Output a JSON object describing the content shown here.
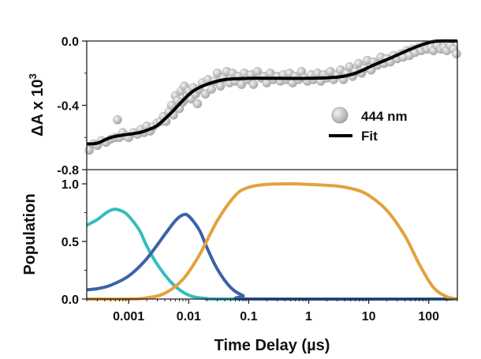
{
  "chart_data": [
    {
      "type": "scatter",
      "panel": "top",
      "ylabel": "ΔA x 10",
      "ylabel_superscript": "3",
      "ylim": [
        -0.8,
        0.0
      ],
      "yticks": [
        "0.0",
        "-0.4",
        "-0.8"
      ],
      "ytick_values": [
        0.0,
        -0.4,
        -0.8
      ],
      "xscale": "log",
      "xlim_us": [
        0.0002,
        300
      ],
      "legend_position": "right",
      "series": [
        {
          "name": "444 nm",
          "kind": "markers",
          "color": "#b8b8b8",
          "points": [
            [
              0.00022,
              -0.68
            ],
            [
              0.00026,
              -0.64
            ],
            [
              0.0003,
              -0.65
            ],
            [
              0.00035,
              -0.62
            ],
            [
              0.00042,
              -0.63
            ],
            [
              0.0005,
              -0.61
            ],
            [
              0.0006,
              -0.6
            ],
            [
              0.00065,
              -0.49
            ],
            [
              0.0007,
              -0.6
            ],
            [
              0.0008,
              -0.57
            ],
            [
              0.0009,
              -0.59
            ],
            [
              0.001,
              -0.6
            ],
            [
              0.0012,
              -0.57
            ],
            [
              0.0014,
              -0.58
            ],
            [
              0.0016,
              -0.55
            ],
            [
              0.0018,
              -0.57
            ],
            [
              0.002,
              -0.53
            ],
            [
              0.0023,
              -0.56
            ],
            [
              0.0026,
              -0.53
            ],
            [
              0.003,
              -0.51
            ],
            [
              0.0034,
              -0.5
            ],
            [
              0.0038,
              -0.47
            ],
            [
              0.0042,
              -0.5
            ],
            [
              0.0047,
              -0.44
            ],
            [
              0.0052,
              -0.4
            ],
            [
              0.0056,
              -0.46
            ],
            [
              0.006,
              -0.34
            ],
            [
              0.0065,
              -0.37
            ],
            [
              0.007,
              -0.42
            ],
            [
              0.0075,
              -0.31
            ],
            [
              0.008,
              -0.38
            ],
            [
              0.0085,
              -0.28
            ],
            [
              0.009,
              -0.36
            ],
            [
              0.0095,
              -0.34
            ],
            [
              0.01,
              -0.31
            ],
            [
              0.011,
              -0.36
            ],
            [
              0.012,
              -0.29
            ],
            [
              0.013,
              -0.33
            ],
            [
              0.014,
              -0.39
            ],
            [
              0.015,
              -0.3
            ],
            [
              0.017,
              -0.26
            ],
            [
              0.019,
              -0.33
            ],
            [
              0.021,
              -0.24
            ],
            [
              0.024,
              -0.3
            ],
            [
              0.027,
              -0.25
            ],
            [
              0.03,
              -0.2
            ],
            [
              0.034,
              -0.28
            ],
            [
              0.038,
              -0.23
            ],
            [
              0.043,
              -0.19
            ],
            [
              0.048,
              -0.26
            ],
            [
              0.054,
              -0.2
            ],
            [
              0.06,
              -0.25
            ],
            [
              0.068,
              -0.22
            ],
            [
              0.076,
              -0.27
            ],
            [
              0.085,
              -0.2
            ],
            [
              0.095,
              -0.24
            ],
            [
              0.11,
              -0.21
            ],
            [
              0.12,
              -0.27
            ],
            [
              0.14,
              -0.19
            ],
            [
              0.16,
              -0.23
            ],
            [
              0.18,
              -0.22
            ],
            [
              0.2,
              -0.26
            ],
            [
              0.23,
              -0.2
            ],
            [
              0.26,
              -0.24
            ],
            [
              0.3,
              -0.22
            ],
            [
              0.34,
              -0.25
            ],
            [
              0.38,
              -0.21
            ],
            [
              0.43,
              -0.24
            ],
            [
              0.48,
              -0.2
            ],
            [
              0.54,
              -0.26
            ],
            [
              0.6,
              -0.22
            ],
            [
              0.68,
              -0.24
            ],
            [
              0.76,
              -0.19
            ],
            [
              0.85,
              -0.23
            ],
            [
              0.95,
              -0.25
            ],
            [
              1.1,
              -0.21
            ],
            [
              1.2,
              -0.24
            ],
            [
              1.4,
              -0.2
            ],
            [
              1.6,
              -0.25
            ],
            [
              1.8,
              -0.21
            ],
            [
              2.0,
              -0.23
            ],
            [
              2.3,
              -0.19
            ],
            [
              2.6,
              -0.24
            ],
            [
              3.0,
              -0.21
            ],
            [
              3.4,
              -0.18
            ],
            [
              3.8,
              -0.24
            ],
            [
              4.3,
              -0.2
            ],
            [
              4.8,
              -0.16
            ],
            [
              5.4,
              -0.22
            ],
            [
              6.0,
              -0.19
            ],
            [
              6.8,
              -0.14
            ],
            [
              7.6,
              -0.2
            ],
            [
              8.5,
              -0.17
            ],
            [
              9.5,
              -0.12
            ],
            [
              11,
              -0.18
            ],
            [
              12,
              -0.13
            ],
            [
              14,
              -0.15
            ],
            [
              16,
              -0.1
            ],
            [
              18,
              -0.14
            ],
            [
              20,
              -0.11
            ],
            [
              23,
              -0.13
            ],
            [
              26,
              -0.09
            ],
            [
              30,
              -0.11
            ],
            [
              34,
              -0.08
            ],
            [
              38,
              -0.1
            ],
            [
              43,
              -0.06
            ],
            [
              48,
              -0.09
            ],
            [
              54,
              -0.05
            ],
            [
              60,
              -0.07
            ],
            [
              68,
              -0.04
            ],
            [
              76,
              -0.06
            ],
            [
              85,
              -0.03
            ],
            [
              95,
              -0.05
            ],
            [
              110,
              -0.04
            ],
            [
              120,
              -0.06
            ],
            [
              140,
              -0.03
            ],
            [
              160,
              -0.05
            ],
            [
              180,
              -0.04
            ],
            [
              200,
              -0.06
            ],
            [
              230,
              -0.03
            ],
            [
              260,
              -0.05
            ],
            [
              290,
              -0.08
            ]
          ]
        },
        {
          "name": "Fit",
          "kind": "line",
          "color": "#000000",
          "points": [
            [
              0.0002,
              -0.64
            ],
            [
              0.0003,
              -0.635
            ],
            [
              0.0005,
              -0.6
            ],
            [
              0.0008,
              -0.585
            ],
            [
              0.001,
              -0.58
            ],
            [
              0.0015,
              -0.57
            ],
            [
              0.002,
              -0.555
            ],
            [
              0.003,
              -0.525
            ],
            [
              0.005,
              -0.45
            ],
            [
              0.008,
              -0.37
            ],
            [
              0.012,
              -0.31
            ],
            [
              0.02,
              -0.27
            ],
            [
              0.04,
              -0.24
            ],
            [
              0.1,
              -0.232
            ],
            [
              0.3,
              -0.232
            ],
            [
              1,
              -0.232
            ],
            [
              3,
              -0.225
            ],
            [
              6,
              -0.2
            ],
            [
              12,
              -0.15
            ],
            [
              25,
              -0.1
            ],
            [
              50,
              -0.05
            ],
            [
              100,
              -0.01
            ],
            [
              150,
              0.0
            ],
            [
              300,
              0.0
            ]
          ]
        }
      ]
    },
    {
      "type": "line",
      "panel": "bottom",
      "xlabel": "Time Delay (µs)",
      "ylabel": "Population",
      "ylim": [
        0,
        1.2
      ],
      "yticks": [
        "0.0",
        "0.5",
        "1.0"
      ],
      "ytick_values": [
        0.0,
        0.5,
        1.0
      ],
      "xscale": "log",
      "xlim_us": [
        0.0002,
        300
      ],
      "xticks": [
        "0.001",
        "0.01",
        "0.1",
        "1",
        "10",
        "100"
      ],
      "xtick_values": [
        0.001,
        0.01,
        0.1,
        1,
        10,
        100
      ],
      "series": [
        {
          "color": "#35bcbf",
          "points": [
            [
              0.0002,
              0.64
            ],
            [
              0.0003,
              0.69
            ],
            [
              0.0004,
              0.74
            ],
            [
              0.0005,
              0.77
            ],
            [
              0.0006,
              0.78
            ],
            [
              0.0008,
              0.76
            ],
            [
              0.001,
              0.72
            ],
            [
              0.0015,
              0.6
            ],
            [
              0.002,
              0.46
            ],
            [
              0.003,
              0.3
            ],
            [
              0.005,
              0.15
            ],
            [
              0.008,
              0.06
            ],
            [
              0.012,
              0.02
            ],
            [
              0.02,
              0.005
            ],
            [
              0.05,
              0.0
            ],
            [
              300,
              0.0
            ]
          ]
        },
        {
          "color": "#3a63a8",
          "points": [
            [
              0.0002,
              0.08
            ],
            [
              0.0003,
              0.09
            ],
            [
              0.0005,
              0.12
            ],
            [
              0.001,
              0.2
            ],
            [
              0.002,
              0.35
            ],
            [
              0.004,
              0.56
            ],
            [
              0.006,
              0.68
            ],
            [
              0.008,
              0.73
            ],
            [
              0.01,
              0.72
            ],
            [
              0.015,
              0.6
            ],
            [
              0.02,
              0.45
            ],
            [
              0.03,
              0.26
            ],
            [
              0.05,
              0.1
            ],
            [
              0.08,
              0.03
            ],
            [
              0.12,
              0.0
            ],
            [
              300,
              0.0
            ]
          ]
        },
        {
          "color": "#e3a23c",
          "points": [
            [
              0.0002,
              0.0
            ],
            [
              0.001,
              0.0
            ],
            [
              0.002,
              0.01
            ],
            [
              0.004,
              0.05
            ],
            [
              0.008,
              0.17
            ],
            [
              0.015,
              0.38
            ],
            [
              0.03,
              0.68
            ],
            [
              0.06,
              0.9
            ],
            [
              0.1,
              0.97
            ],
            [
              0.2,
              0.995
            ],
            [
              0.5,
              1.0
            ],
            [
              1,
              0.995
            ],
            [
              3,
              0.98
            ],
            [
              6,
              0.95
            ],
            [
              10,
              0.9
            ],
            [
              20,
              0.77
            ],
            [
              40,
              0.55
            ],
            [
              70,
              0.3
            ],
            [
              120,
              0.1
            ],
            [
              200,
              0.02
            ],
            [
              300,
              0.0
            ]
          ]
        }
      ]
    }
  ]
}
